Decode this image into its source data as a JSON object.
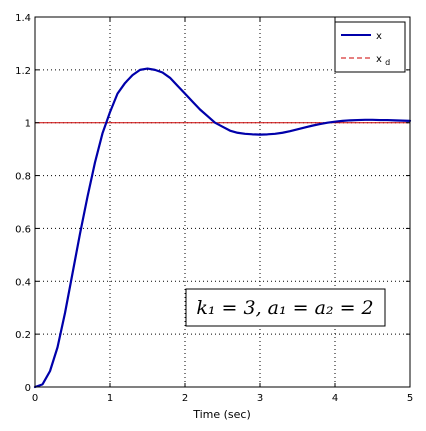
{
  "chart_data": {
    "type": "line",
    "title": "",
    "xlabel": "Time (sec)",
    "ylabel": "",
    "xlim": [
      0,
      5
    ],
    "ylim": [
      0,
      1.4
    ],
    "x_ticks": [
      0,
      1,
      2,
      3,
      4,
      5
    ],
    "x_tick_labels": [
      "0",
      "1",
      "2",
      "3",
      "4",
      "5"
    ],
    "y_ticks": [
      0,
      0.2,
      0.4,
      0.6,
      0.8,
      1,
      1.2,
      1.4
    ],
    "y_tick_labels": [
      "0",
      "0.2",
      "0.4",
      "0.6",
      "0.8",
      "1",
      "1.2",
      "1.4"
    ],
    "grid": "dotted",
    "legend_position": "top-right",
    "legend": [
      {
        "label": "x",
        "sub": "",
        "style": "solid",
        "color": "#0000aa"
      },
      {
        "label": "x",
        "sub": "d",
        "style": "dashed",
        "color": "#cc0000"
      }
    ],
    "series": [
      {
        "name": "x",
        "color": "#0000aa",
        "x": [
          0,
          0.1,
          0.2,
          0.3,
          0.4,
          0.5,
          0.6,
          0.7,
          0.8,
          0.9,
          1.0,
          1.1,
          1.2,
          1.3,
          1.4,
          1.5,
          1.6,
          1.7,
          1.8,
          1.9,
          2.0,
          2.1,
          2.2,
          2.3,
          2.4,
          2.5,
          2.6,
          2.7,
          2.8,
          2.9,
          3.0,
          3.1,
          3.2,
          3.3,
          3.4,
          3.5,
          3.6,
          3.7,
          3.8,
          3.9,
          4.0,
          4.1,
          4.2,
          4.3,
          4.4,
          4.5,
          4.6,
          4.7,
          4.8,
          4.9,
          5.0
        ],
        "y": [
          0,
          0.01,
          0.06,
          0.15,
          0.28,
          0.43,
          0.58,
          0.72,
          0.85,
          0.96,
          1.04,
          1.11,
          1.15,
          1.18,
          1.2,
          1.205,
          1.2,
          1.19,
          1.17,
          1.14,
          1.11,
          1.08,
          1.05,
          1.025,
          1.0,
          0.985,
          0.97,
          0.962,
          0.958,
          0.956,
          0.955,
          0.956,
          0.958,
          0.962,
          0.968,
          0.975,
          0.982,
          0.989,
          0.995,
          1.0,
          1.004,
          1.007,
          1.009,
          1.01,
          1.011,
          1.011,
          1.01,
          1.01,
          1.009,
          1.008,
          1.007
        ]
      },
      {
        "name": "x_d",
        "color": "#cc0000",
        "x": [
          0,
          5
        ],
        "y": [
          1,
          1
        ]
      }
    ],
    "annotations": [
      {
        "text": "k₁ = 3, a₁ = a₂ = 2",
        "x": 2.6,
        "y": 0.29
      }
    ]
  }
}
